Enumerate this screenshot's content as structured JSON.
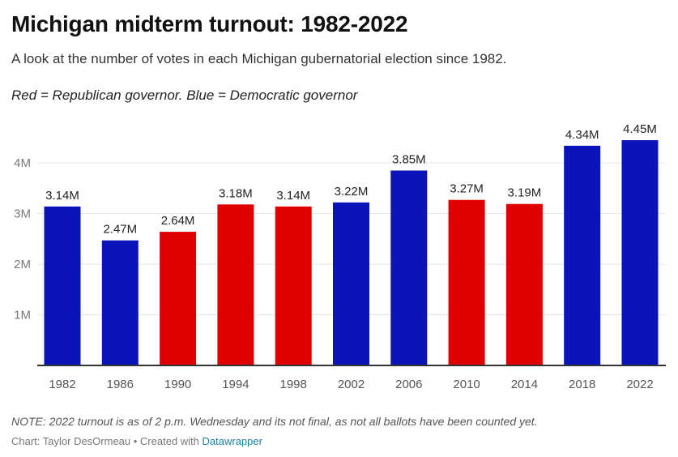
{
  "header": {
    "title": "Michigan midterm turnout: 1982-2022",
    "subtitle": "A look at the number of votes in each Michigan gubernatorial election since 1982.",
    "legend_note": "Red = Republican governor. Blue = Democratic governor"
  },
  "footer": {
    "note": "NOTE: 2022 turnout is as of 2 p.m. Wednesday and its not final, as not all ballots have been counted yet.",
    "credit_prefix": "Chart: Taylor DesOrmeau • Created with ",
    "credit_link": "Datawrapper"
  },
  "colors": {
    "democratic": "#0a14b8",
    "republican": "#e00000"
  },
  "chart_data": {
    "type": "bar",
    "categories": [
      "1982",
      "1986",
      "1990",
      "1994",
      "1998",
      "2002",
      "2006",
      "2010",
      "2014",
      "2018",
      "2022"
    ],
    "values": [
      3.14,
      2.47,
      2.64,
      3.18,
      3.14,
      3.22,
      3.85,
      3.27,
      3.19,
      4.34,
      4.45
    ],
    "labels": [
      "3.14M",
      "2.47M",
      "2.64M",
      "3.18M",
      "3.14M",
      "3.22M",
      "3.85M",
      "3.27M",
      "3.19M",
      "4.34M",
      "4.45M"
    ],
    "party": [
      "democratic",
      "democratic",
      "republican",
      "republican",
      "republican",
      "democratic",
      "democratic",
      "republican",
      "republican",
      "democratic",
      "democratic"
    ],
    "yticks": [
      1,
      2,
      3,
      4
    ],
    "ytick_labels": [
      "1M",
      "2M",
      "3M",
      "4M"
    ],
    "ylim": [
      0,
      4.45
    ],
    "grid": true,
    "xlabel": "",
    "ylabel": ""
  }
}
